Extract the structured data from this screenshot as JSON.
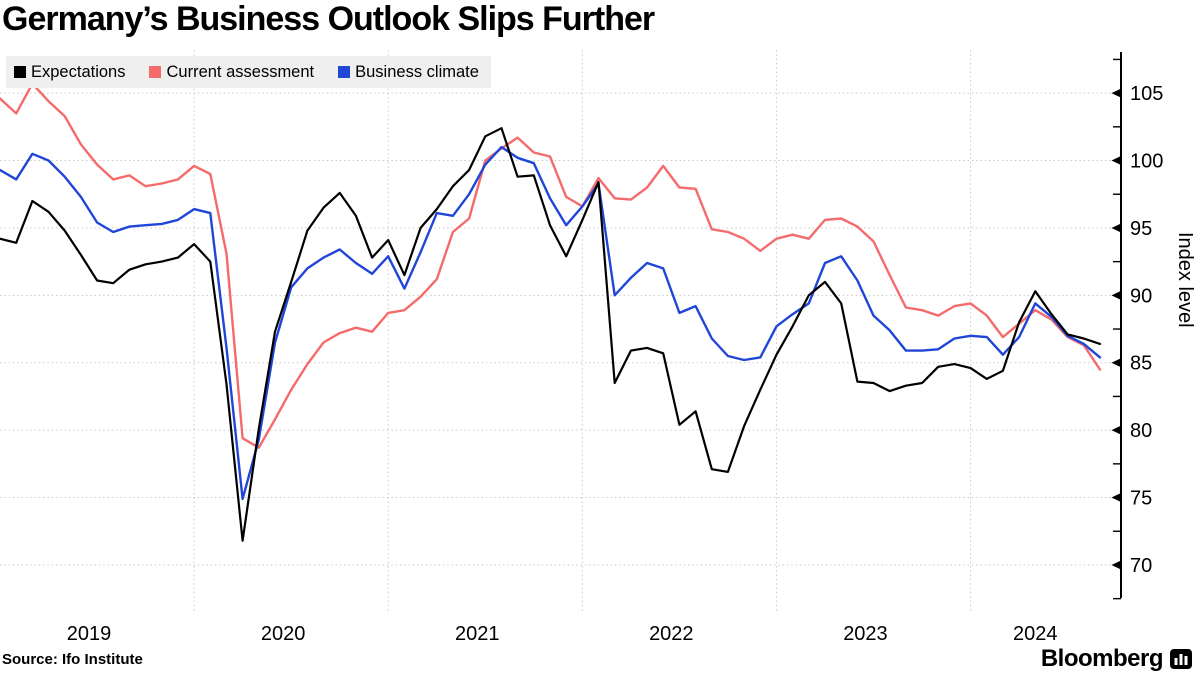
{
  "title": "Germany’s Business Outlook Slips Further",
  "legend": [
    {
      "label": "Expectations",
      "color": "#000000"
    },
    {
      "label": "Current assessment",
      "color": "#f56b6b"
    },
    {
      "label": "Business climate",
      "color": "#2046d8"
    }
  ],
  "source": "Source: Ifo Institute",
  "branding": {
    "logo_text": "Bloomberg",
    "logo_icon": "bar-chart-icon"
  },
  "chart_data": {
    "type": "line",
    "frequency": "monthly",
    "x_start": "2019-01",
    "x_end": "2024-09",
    "x_year_labels": [
      "2019",
      "2020",
      "2021",
      "2022",
      "2023",
      "2024"
    ],
    "ylabel": "Index level",
    "ylim": [
      67.4,
      108.2
    ],
    "yticks": [
      105,
      100,
      95,
      90,
      85,
      80,
      75,
      70
    ],
    "minor_yticks": [
      107.5,
      102.5,
      97.5,
      92.5,
      87.5,
      82.5,
      77.5,
      72.5,
      67.5
    ],
    "grid": "dotted",
    "legend_position": "top-left",
    "series": [
      {
        "name": "Expectations",
        "color": "#000000",
        "values": [
          94.2,
          93.9,
          97.0,
          96.2,
          94.8,
          93.0,
          91.1,
          90.9,
          91.9,
          92.3,
          92.5,
          92.8,
          93.8,
          92.5,
          83.4,
          71.8,
          80.1,
          87.3,
          91.0,
          94.8,
          96.5,
          97.6,
          95.9,
          92.8,
          94.1,
          91.5,
          95.0,
          96.4,
          98.1,
          99.3,
          101.8,
          102.4,
          98.8,
          98.9,
          95.2,
          92.9,
          95.6,
          98.4,
          83.5,
          85.9,
          86.1,
          85.7,
          80.4,
          81.4,
          77.1,
          76.9,
          80.3,
          83.0,
          85.6,
          87.7,
          90.0,
          91.0,
          89.4,
          83.6,
          83.5,
          82.9,
          83.3,
          83.5,
          84.7,
          84.9,
          84.6,
          83.8,
          84.4,
          88.0,
          90.3,
          88.6,
          87.1,
          86.8,
          86.4
        ]
      },
      {
        "name": "Current assessment",
        "color": "#f56b6b",
        "values": [
          104.6,
          103.5,
          105.7,
          104.4,
          103.3,
          101.2,
          99.7,
          98.6,
          98.9,
          98.1,
          98.3,
          98.6,
          99.6,
          99.0,
          93.1,
          79.4,
          78.7,
          80.8,
          83.0,
          84.9,
          86.5,
          87.2,
          87.6,
          87.3,
          88.7,
          88.9,
          89.9,
          91.2,
          94.7,
          95.7,
          100.0,
          100.9,
          101.7,
          100.6,
          100.3,
          97.3,
          96.6,
          98.7,
          97.2,
          97.1,
          98.0,
          99.6,
          98.0,
          97.9,
          94.9,
          94.7,
          94.2,
          93.3,
          94.2,
          94.5,
          94.2,
          95.6,
          95.7,
          95.1,
          94.0,
          91.5,
          89.1,
          88.9,
          88.5,
          89.2,
          89.4,
          88.5,
          86.9,
          87.9,
          88.9,
          88.2,
          86.9,
          86.3,
          84.5
        ]
      },
      {
        "name": "Business climate",
        "color": "#2046d8",
        "values": [
          99.3,
          98.6,
          100.5,
          100.0,
          98.8,
          97.3,
          95.4,
          94.7,
          95.1,
          95.2,
          95.3,
          95.6,
          96.4,
          96.1,
          86.1,
          74.9,
          79.3,
          86.5,
          90.6,
          92.0,
          92.8,
          93.4,
          92.4,
          91.6,
          92.9,
          90.5,
          93.2,
          96.1,
          95.9,
          97.5,
          99.7,
          101.0,
          100.2,
          99.8,
          97.2,
          95.2,
          96.6,
          98.3,
          90.0,
          91.3,
          92.4,
          92.0,
          88.7,
          89.2,
          86.8,
          85.5,
          85.2,
          85.4,
          87.7,
          88.6,
          89.4,
          92.4,
          92.9,
          91.1,
          88.5,
          87.4,
          85.9,
          85.9,
          86.0,
          86.8,
          87.0,
          86.9,
          85.6,
          86.9,
          89.4,
          88.4,
          87.0,
          86.4,
          85.4
        ]
      }
    ]
  }
}
